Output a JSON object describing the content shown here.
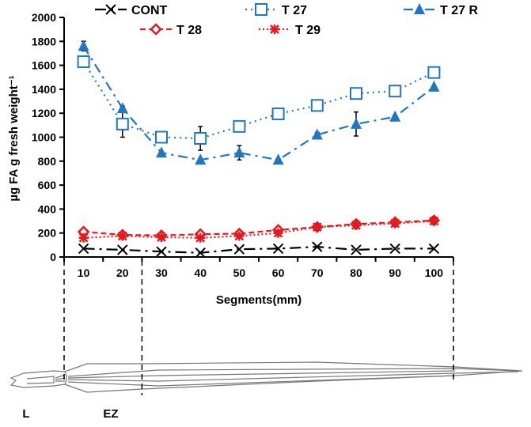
{
  "chart_data": {
    "type": "line",
    "title": "",
    "xlabel": "Segments(mm)",
    "ylabel": "µg FA g fresh weight⁻¹",
    "x": [
      10,
      20,
      30,
      40,
      50,
      60,
      70,
      80,
      90,
      100
    ],
    "xtick_labels": [
      "10",
      "20",
      "30",
      "40",
      "50",
      "60",
      "70",
      "80",
      "90",
      "100"
    ],
    "ylim": [
      0,
      2000
    ],
    "yticks": [
      0,
      200,
      400,
      600,
      800,
      1000,
      1200,
      1400,
      1600,
      1800,
      2000
    ],
    "grid": false,
    "legend_position": "top",
    "series": [
      {
        "name": "CONT",
        "color": "#000000",
        "marker": "x",
        "dash": "14 6 3 6",
        "values": [
          70,
          60,
          45,
          35,
          65,
          70,
          85,
          60,
          70,
          70
        ],
        "errors": [
          0,
          0,
          0,
          0,
          0,
          0,
          0,
          0,
          0,
          0
        ]
      },
      {
        "name": "T 27",
        "color": "#1f77c4",
        "marker": "square-open",
        "dash": "2 5",
        "values": [
          1630,
          1110,
          1000,
          990,
          1090,
          1195,
          1265,
          1365,
          1385,
          1540
        ],
        "errors": [
          30,
          110,
          20,
          100,
          20,
          20,
          20,
          20,
          20,
          40
        ]
      },
      {
        "name": "T 27 R",
        "color": "#1f77c4",
        "marker": "triangle",
        "dash": "12 6 3 6",
        "values": [
          1760,
          1240,
          870,
          810,
          870,
          810,
          1020,
          1110,
          1170,
          1420
        ],
        "errors": [
          40,
          20,
          10,
          10,
          60,
          10,
          20,
          100,
          10,
          10
        ]
      },
      {
        "name": "T 28",
        "color": "#e8191c",
        "marker": "diamond-open",
        "dash": "7 4",
        "values": [
          210,
          185,
          180,
          190,
          195,
          225,
          250,
          275,
          290,
          305
        ],
        "errors": [
          10,
          10,
          10,
          10,
          10,
          30,
          20,
          30,
          20,
          20
        ]
      },
      {
        "name": "T 29",
        "color": "#e8191c",
        "marker": "asterisk",
        "dash": "2 3",
        "values": [
          160,
          175,
          165,
          160,
          175,
          200,
          250,
          265,
          280,
          300
        ],
        "errors": [
          10,
          10,
          10,
          10,
          10,
          20,
          20,
          20,
          20,
          20
        ]
      }
    ],
    "annotations": [
      "L",
      "EZ"
    ]
  }
}
